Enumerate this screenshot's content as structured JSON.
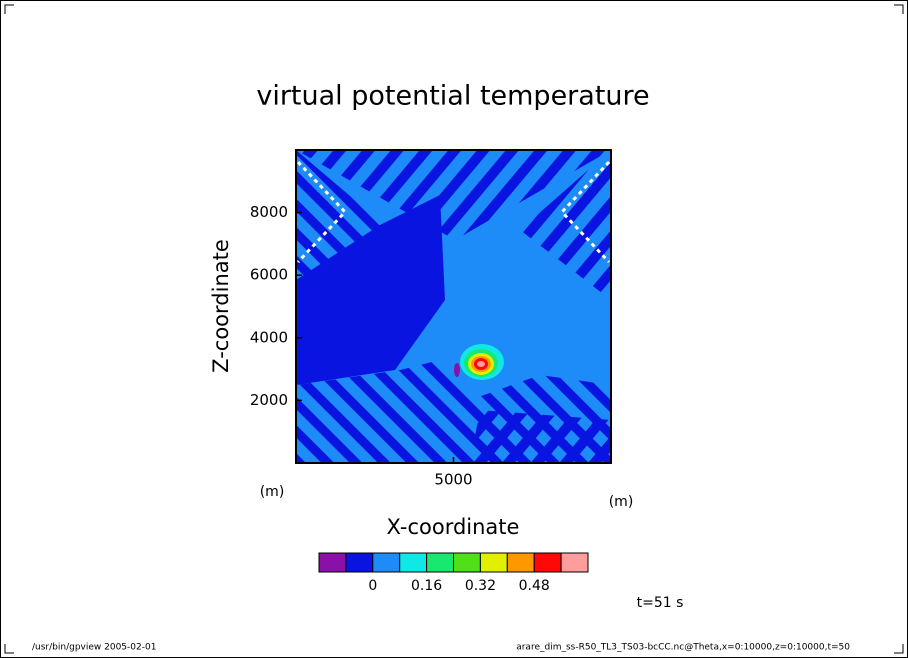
{
  "chart_data": {
    "type": "contour",
    "title": "virtual potential temperature",
    "x_label": "X-coordinate",
    "y_label": "Z-coordinate",
    "x_unit": "(m)",
    "y_unit": "(m)",
    "xlim": [
      0,
      10000
    ],
    "ylim": [
      0,
      10000
    ],
    "xticks": [
      5000
    ],
    "yticks": [
      2000,
      4000,
      6000,
      8000
    ],
    "colorbar": {
      "clim": [
        -0.16,
        0.64
      ],
      "colors": [
        "#8a10a8",
        "#0a14e0",
        "#1e8cf8",
        "#10e8e8",
        "#18e870",
        "#50e018",
        "#e0f000",
        "#ff9800",
        "#ff0808",
        "#ff9c9c"
      ],
      "ticks": [
        0,
        0.16,
        0.32,
        0.48
      ]
    },
    "time_label": "t=51 s"
  },
  "footer": {
    "left": "/usr/bin/gpview  2005-02-01",
    "right": "arare_dim_ss-R50_TL3_TS03-bcCC.nc@Theta,x=0:10000,z=0:10000,t=50"
  }
}
